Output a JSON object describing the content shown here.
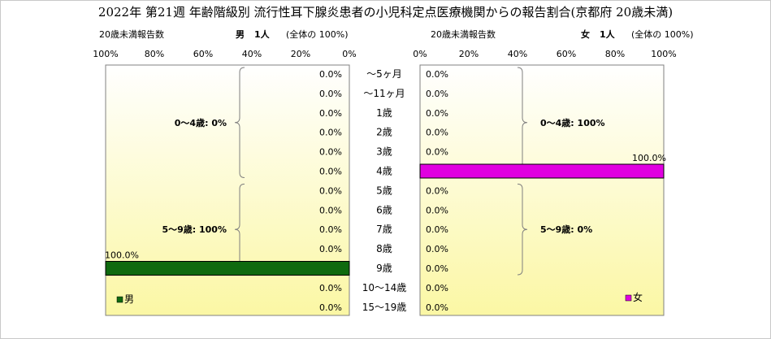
{
  "title": "2022年 第21週 年齢階級別 流行性耳下腺炎患者の小児科定点医療機関からの報告割合(京都府 20歳未満)",
  "left_header": {
    "count_label": "20歳未満報告数",
    "sex": "男",
    "count": "1人",
    "total_note": "(全体の 100%)"
  },
  "right_header": {
    "count_label": "20歳未満報告数",
    "sex": "女",
    "count": "1人",
    "total_note": "(全体の 100%)"
  },
  "colors": {
    "panel_bg_top": "#ffffff",
    "panel_bg_bottom": "#fbf7a4",
    "male_bar": "#0f6a0f",
    "female_bar": "#e000e0",
    "brace": "#7f7f7f"
  },
  "chart_data": {
    "type": "bar",
    "orientation": "horizontal",
    "layout": "population-pyramid",
    "categories": [
      "～5ヶ月",
      "～11ヶ月",
      "1歳",
      "2歳",
      "3歳",
      "4歳",
      "5歳",
      "6歳",
      "7歳",
      "8歳",
      "9歳",
      "10～14歳",
      "15～19歳"
    ],
    "series": [
      {
        "name": "男",
        "color": "#0f6a0f",
        "values": [
          0,
          0,
          0,
          0,
          0,
          0,
          0,
          0,
          0,
          0,
          100,
          0,
          0
        ],
        "labels": [
          "0.0%",
          "0.0%",
          "0.0%",
          "0.0%",
          "0.0%",
          "0.0%",
          "0.0%",
          "0.0%",
          "0.0%",
          "0.0%",
          "100.0%",
          "0.0%",
          "0.0%"
        ]
      },
      {
        "name": "女",
        "color": "#e000e0",
        "values": [
          0,
          0,
          0,
          0,
          0,
          100,
          0,
          0,
          0,
          0,
          0,
          0,
          0
        ],
        "labels": [
          "0.0%",
          "0.0%",
          "0.0%",
          "0.0%",
          "0.0%",
          "100.0%",
          "0.0%",
          "0.0%",
          "0.0%",
          "0.0%",
          "0.0%",
          "0.0%",
          "0.0%"
        ]
      }
    ],
    "xlim": [
      0,
      100
    ],
    "left_ticks": [
      "100%",
      "80%",
      "60%",
      "40%",
      "20%",
      "0%"
    ],
    "right_ticks": [
      "0%",
      "20%",
      "40%",
      "60%",
      "80%",
      "100%"
    ],
    "groups": [
      {
        "side": "male",
        "label": "0～4歳: 0%",
        "from": 0,
        "to": 5
      },
      {
        "side": "male",
        "label": "5～9歳: 100%",
        "from": 6,
        "to": 10
      },
      {
        "side": "female",
        "label": "0～4歳: 100%",
        "from": 0,
        "to": 5
      },
      {
        "side": "female",
        "label": "5～9歳: 0%",
        "from": 6,
        "to": 10
      }
    ],
    "legend": [
      {
        "name": "男",
        "color": "#0f6a0f",
        "panel": "left",
        "position": "bottom-left"
      },
      {
        "name": "女",
        "color": "#e000e0",
        "panel": "right",
        "position": "bottom-right"
      }
    ],
    "grid": false
  }
}
